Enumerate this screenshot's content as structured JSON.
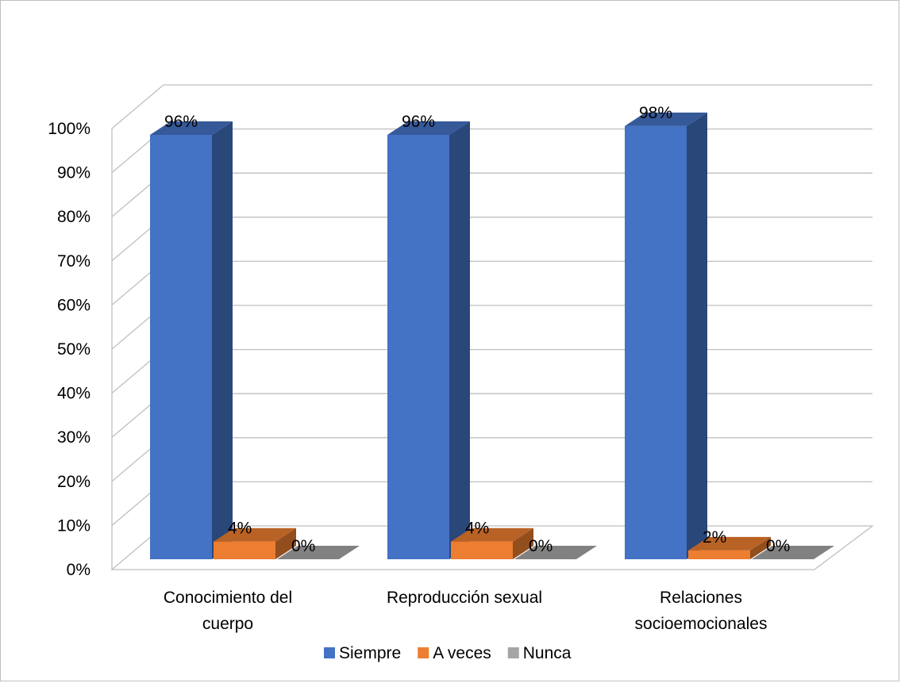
{
  "chart_data": {
    "type": "bar",
    "style": "3d-clustered-column",
    "title": "",
    "xlabel": "",
    "ylabel": "",
    "categories": [
      [
        "Conocimiento del",
        "cuerpo"
      ],
      [
        "Reproducción sexual"
      ],
      [
        "Relaciones",
        "socioemocionales"
      ]
    ],
    "series": [
      {
        "name": "Siempre",
        "color": "#4472C4",
        "values": [
          96,
          96,
          98
        ],
        "labels": [
          "96%",
          "96%",
          "98%"
        ]
      },
      {
        "name": "A veces",
        "color": "#ED7D31",
        "values": [
          4,
          4,
          2
        ],
        "labels": [
          "4%",
          "4%",
          "2%"
        ]
      },
      {
        "name": "Nunca",
        "color": "#A5A5A5",
        "values": [
          0,
          0,
          0
        ],
        "labels": [
          "0%",
          "0%",
          "0%"
        ]
      }
    ],
    "ylim": [
      0,
      100
    ],
    "yticks": [
      "0%",
      "10%",
      "20%",
      "30%",
      "40%",
      "50%",
      "60%",
      "70%",
      "80%",
      "90%",
      "100%"
    ],
    "grid": true,
    "legend": "bottom",
    "colors": {
      "gridline": "#BFBFBF"
    }
  }
}
